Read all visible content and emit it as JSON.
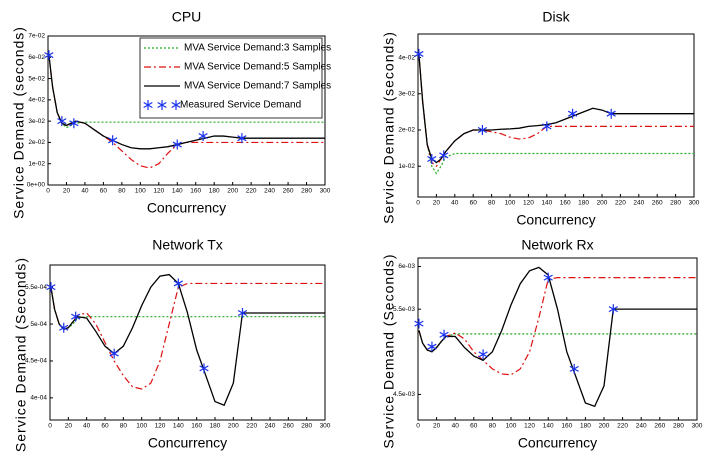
{
  "chart_data": [
    {
      "type": "line",
      "title": "CPU",
      "x_label": "Concurrency",
      "y_label": "Service Demand (seconds)",
      "legend": "upper right",
      "x": [
        1,
        5,
        10,
        15,
        20,
        25,
        30,
        40,
        50,
        60,
        70,
        80,
        90,
        100,
        110,
        120,
        130,
        140,
        150,
        160,
        170,
        180,
        190,
        200,
        210,
        220,
        300
      ],
      "xlim": [
        0,
        300
      ],
      "xticks": [
        0,
        20,
        40,
        60,
        80,
        100,
        120,
        140,
        160,
        180,
        200,
        220,
        240,
        260,
        280,
        300
      ],
      "ylim": [
        0,
        0.07
      ],
      "yticks": [
        {
          "value": 0,
          "label": "0e+00"
        },
        {
          "value": 0.01,
          "label": "1e-02"
        },
        {
          "value": 0.02,
          "label": "2e-02"
        },
        {
          "value": 0.03,
          "label": "3e-02"
        },
        {
          "value": 0.04,
          "label": "4e-02"
        },
        {
          "value": 0.05,
          "label": "5e-02"
        },
        {
          "value": 0.06,
          "label": "6e-02"
        },
        {
          "value": 0.07,
          "label": "7e-02"
        }
      ],
      "series": [
        {
          "name": "MVA Service Demand:3 Samples",
          "color": "#22aa22",
          "style": "dotted",
          "values": [
            0.061,
            0.046,
            0.034,
            0.029,
            0.027,
            0.028,
            0.029,
            0.0295,
            0.0295,
            0.0295,
            0.0295,
            0.0295,
            0.0295,
            0.0295,
            0.0295,
            0.0295,
            0.0295,
            0.0295,
            0.0295,
            0.0295,
            0.0295,
            0.0295,
            0.0295,
            0.0295,
            0.0295,
            0.0295,
            0.0295
          ]
        },
        {
          "name": "MVA Service Demand:5 Samples",
          "color": "#dd1111",
          "style": "dashdot",
          "values": [
            0.061,
            0.046,
            0.034,
            0.029,
            0.028,
            0.029,
            0.03,
            0.029,
            0.026,
            0.023,
            0.02,
            0.016,
            0.012,
            0.009,
            0.008,
            0.01,
            0.015,
            0.019,
            0.02,
            0.02,
            0.02,
            0.02,
            0.02,
            0.02,
            0.02,
            0.02,
            0.02
          ]
        },
        {
          "name": "MVA Service Demand:7 Samples",
          "color": "#000000",
          "style": "solid",
          "values": [
            0.061,
            0.046,
            0.034,
            0.029,
            0.028,
            0.029,
            0.03,
            0.029,
            0.026,
            0.023,
            0.021,
            0.019,
            0.0175,
            0.017,
            0.017,
            0.0175,
            0.018,
            0.019,
            0.02,
            0.021,
            0.022,
            0.023,
            0.023,
            0.0225,
            0.022,
            0.022,
            0.022
          ]
        },
        {
          "name": "Measured Service Demand",
          "color": "#1a33ee",
          "style": "star",
          "x": [
            1,
            15,
            28,
            70,
            140,
            168,
            210
          ],
          "values": [
            0.061,
            0.03,
            0.029,
            0.021,
            0.019,
            0.023,
            0.022
          ]
        }
      ]
    },
    {
      "type": "line",
      "title": "Disk",
      "x_label": "Concurrency",
      "y_label": "Service Demand (seconds)",
      "x": [
        1,
        5,
        10,
        15,
        20,
        25,
        30,
        40,
        50,
        60,
        70,
        80,
        90,
        100,
        110,
        120,
        130,
        140,
        150,
        160,
        170,
        180,
        190,
        200,
        210,
        220,
        300
      ],
      "xlim": [
        0,
        300
      ],
      "xticks": [
        0,
        20,
        40,
        60,
        80,
        100,
        120,
        140,
        160,
        180,
        200,
        220,
        240,
        260,
        280,
        300
      ],
      "ylim": [
        0.0015,
        0.0465
      ],
      "yticks": [
        {
          "value": 0.01,
          "label": "1e-02"
        },
        {
          "value": 0.02,
          "label": "2e-02"
        },
        {
          "value": 0.03,
          "label": "3e-02"
        },
        {
          "value": 0.04,
          "label": "4e-02"
        }
      ],
      "series": [
        {
          "color": "#22aa22",
          "style": "dotted",
          "values": [
            0.041,
            0.028,
            0.016,
            0.01,
            0.008,
            0.01,
            0.0125,
            0.0135,
            0.0135,
            0.0135,
            0.0135,
            0.0135,
            0.0135,
            0.0135,
            0.0135,
            0.0135,
            0.0135,
            0.0135,
            0.0135,
            0.0135,
            0.0135,
            0.0135,
            0.0135,
            0.0135,
            0.0135,
            0.0135,
            0.0135
          ]
        },
        {
          "color": "#dd1111",
          "style": "dashdot",
          "values": [
            0.041,
            0.028,
            0.016,
            0.011,
            0.01,
            0.012,
            0.014,
            0.017,
            0.019,
            0.02,
            0.02,
            0.0195,
            0.019,
            0.018,
            0.0175,
            0.0178,
            0.019,
            0.021,
            0.021,
            0.021,
            0.021,
            0.021,
            0.021,
            0.021,
            0.021,
            0.021,
            0.021
          ]
        },
        {
          "color": "#000000",
          "style": "solid",
          "values": [
            0.041,
            0.028,
            0.016,
            0.012,
            0.011,
            0.012,
            0.014,
            0.017,
            0.019,
            0.02,
            0.02,
            0.02,
            0.0202,
            0.0203,
            0.0205,
            0.021,
            0.0212,
            0.0215,
            0.022,
            0.023,
            0.024,
            0.025,
            0.026,
            0.0255,
            0.0245,
            0.0245,
            0.0245
          ]
        },
        {
          "color": "#1a33ee",
          "style": "star",
          "x": [
            1,
            15,
            28,
            70,
            140,
            168,
            210
          ],
          "values": [
            0.041,
            0.012,
            0.013,
            0.02,
            0.021,
            0.0245,
            0.0245
          ]
        }
      ]
    },
    {
      "type": "line",
      "title": "Network Tx",
      "x_label": "Concurrency",
      "y_label": "Service Demand (Seconds)",
      "x": [
        1,
        5,
        10,
        15,
        20,
        25,
        30,
        40,
        50,
        60,
        70,
        80,
        90,
        100,
        110,
        120,
        130,
        140,
        150,
        160,
        170,
        180,
        190,
        200,
        210,
        220,
        300
      ],
      "xlim": [
        0,
        300
      ],
      "xticks": [
        0,
        20,
        40,
        60,
        80,
        100,
        120,
        140,
        160,
        180,
        200,
        220,
        240,
        260,
        280,
        300
      ],
      "ylim": [
        0.00037,
        0.00058
      ],
      "yticks": [
        {
          "value": 0.0004,
          "label": "4e-04"
        },
        {
          "value": 0.00045,
          "label": "4.5e-04"
        },
        {
          "value": 0.0005,
          "label": "5e-04"
        },
        {
          "value": 0.00055,
          "label": "5.5e-04"
        }
      ],
      "series": [
        {
          "color": "#22aa22",
          "style": "dotted",
          "values": [
            0.00055,
            0.00052,
            0.0005,
            0.000493,
            0.000495,
            0.0005,
            0.000508,
            0.00051,
            0.00051,
            0.00051,
            0.00051,
            0.00051,
            0.00051,
            0.00051,
            0.00051,
            0.00051,
            0.00051,
            0.00051,
            0.00051,
            0.00051,
            0.00051,
            0.00051,
            0.00051,
            0.00051,
            0.00051,
            0.00051,
            0.00051
          ]
        },
        {
          "color": "#dd1111",
          "style": "dashdot",
          "values": [
            0.00055,
            0.00052,
            0.0005,
            0.000493,
            0.000495,
            0.000503,
            0.000512,
            0.000515,
            0.0005,
            0.000475,
            0.00045,
            0.00043,
            0.000415,
            0.000412,
            0.00042,
            0.00045,
            0.0005,
            0.00055,
            0.000555,
            0.000555,
            0.000555,
            0.000555,
            0.000555,
            0.000555,
            0.000555,
            0.000555,
            0.000555
          ]
        },
        {
          "color": "#000000",
          "style": "solid",
          "values": [
            0.00055,
            0.00052,
            0.0005,
            0.000493,
            0.000495,
            0.000503,
            0.00051,
            0.000508,
            0.00049,
            0.00047,
            0.00046,
            0.00047,
            0.000495,
            0.000525,
            0.00055,
            0.000565,
            0.000567,
            0.000555,
            0.000515,
            0.000465,
            0.00043,
            0.000395,
            0.00039,
            0.00042,
            0.000515,
            0.000515,
            0.000515
          ]
        },
        {
          "color": "#1a33ee",
          "style": "star",
          "x": [
            1,
            15,
            28,
            70,
            140,
            168,
            210
          ],
          "values": [
            0.00055,
            0.000495,
            0.00051,
            0.00046,
            0.000555,
            0.00044,
            0.000515
          ]
        }
      ]
    },
    {
      "type": "line",
      "title": "Network Rx",
      "x_label": "Concurrency",
      "y_label": "Service Demand (Seconds)",
      "x": [
        1,
        5,
        10,
        15,
        20,
        25,
        30,
        40,
        50,
        60,
        70,
        80,
        90,
        100,
        110,
        120,
        130,
        140,
        150,
        160,
        170,
        180,
        190,
        200,
        210,
        220,
        300
      ],
      "xlim": [
        0,
        300
      ],
      "xticks": [
        0,
        20,
        40,
        60,
        80,
        100,
        120,
        140,
        160,
        180,
        200,
        220,
        240,
        260,
        280,
        300
      ],
      "ylim": [
        0.0042,
        0.0061
      ],
      "yticks": [
        {
          "value": 0.0045,
          "label": "4.5e-03"
        },
        {
          "value": 0.0055,
          "label": "5.5e-03"
        },
        {
          "value": 0.006,
          "label": "6e-03"
        }
      ],
      "series": [
        {
          "color": "#22aa22",
          "style": "dotted",
          "values": [
            0.00525,
            0.0051,
            0.00502,
            0.005,
            0.00505,
            0.00512,
            0.00518,
            0.00521,
            0.00521,
            0.00521,
            0.00521,
            0.00521,
            0.00521,
            0.00521,
            0.00521,
            0.00521,
            0.00521,
            0.00521,
            0.00521,
            0.00521,
            0.00521,
            0.00521,
            0.00521,
            0.00521,
            0.00521,
            0.00521,
            0.00521
          ]
        },
        {
          "color": "#dd1111",
          "style": "dashdot",
          "values": [
            0.00525,
            0.0051,
            0.00502,
            0.005,
            0.00505,
            0.00512,
            0.00518,
            0.00522,
            0.00515,
            0.005,
            0.0049,
            0.0048,
            0.00474,
            0.00473,
            0.0048,
            0.005,
            0.0054,
            0.00585,
            0.00587,
            0.00587,
            0.00587,
            0.00587,
            0.00587,
            0.00587,
            0.00587,
            0.00587,
            0.00587
          ]
        },
        {
          "color": "#000000",
          "style": "solid",
          "values": [
            0.00525,
            0.0051,
            0.00502,
            0.005,
            0.00505,
            0.00512,
            0.00518,
            0.00518,
            0.00505,
            0.00495,
            0.0049,
            0.005,
            0.00525,
            0.00555,
            0.0058,
            0.00595,
            0.00599,
            0.0059,
            0.0055,
            0.005,
            0.0047,
            0.0044,
            0.00436,
            0.0046,
            0.0055,
            0.0055,
            0.0055
          ]
        },
        {
          "color": "#1a33ee",
          "style": "star",
          "x": [
            1,
            15,
            28,
            70,
            140,
            168,
            210
          ],
          "values": [
            0.00533,
            0.00506,
            0.0052,
            0.00497,
            0.00587,
            0.0048,
            0.0055
          ]
        }
      ]
    }
  ]
}
